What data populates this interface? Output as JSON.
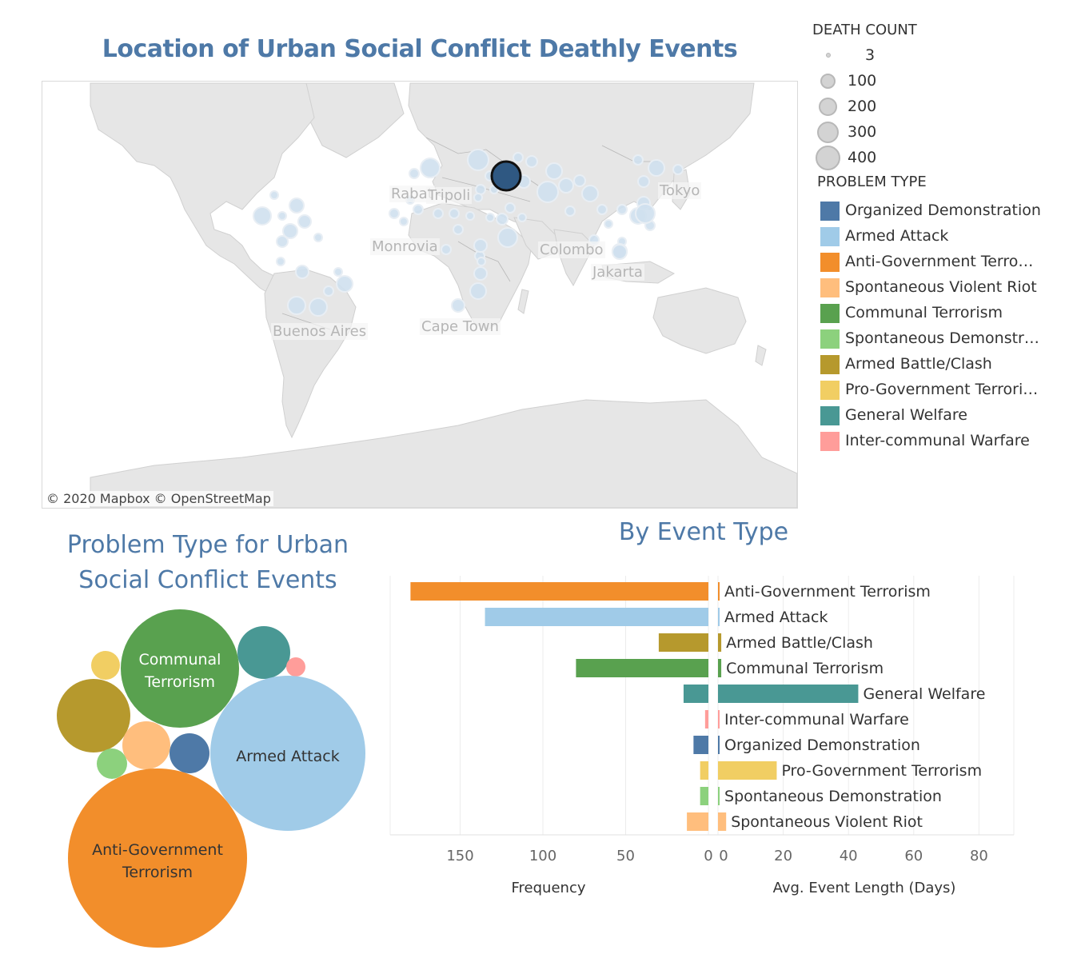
{
  "map": {
    "title": "Location of Urban Social Conflict Deathly Events",
    "attribution": "© 2020 Mapbox  © OpenStreetMap",
    "cities": [
      "Tokyo",
      "Rabat",
      "Tripoli",
      "Monrovia",
      "Colombo",
      "Jakarta",
      "Buenos Aires",
      "Cape Town"
    ]
  },
  "size_legend": {
    "title": "DEATH COUNT",
    "items": [
      "3",
      "100",
      "200",
      "300",
      "400"
    ]
  },
  "problem_legend": {
    "title": "PROBLEM TYPE",
    "items": [
      {
        "label": "Organized Demonstration",
        "color": "#4e79a7"
      },
      {
        "label": "Armed Attack",
        "color": "#a0cbe8"
      },
      {
        "label": "Anti-Government Terro…",
        "color": "#f28e2b"
      },
      {
        "label": "Spontaneous Violent Riot",
        "color": "#ffbe7d"
      },
      {
        "label": "Communal Terrorism",
        "color": "#59a14f"
      },
      {
        "label": "Spontaneous Demonstr…",
        "color": "#8cd17d"
      },
      {
        "label": "Armed Battle/Clash",
        "color": "#b6992d"
      },
      {
        "label": "Pro-Government Terrori…",
        "color": "#f1ce63"
      },
      {
        "label": "General Welfare",
        "color": "#499894"
      },
      {
        "label": "Inter-communal Warfare",
        "color": "#ff9d9a"
      }
    ]
  },
  "bubble": {
    "title_line1": "Problem Type for Urban",
    "title_line2": "Social Conflict Events",
    "labels": {
      "communal_1": "Communal",
      "communal_2": "Terrorism",
      "armed_attack": "Armed Attack",
      "antigov_1": "Anti-Government",
      "antigov_2": "Terrorism"
    }
  },
  "bar_title": "By Event Type",
  "chart_data": {
    "type": "bar",
    "categories": [
      "Anti-Government Terrorism",
      "Armed Attack",
      "Armed Battle/Clash",
      "Communal Terrorism",
      "General Welfare",
      "Inter-communal Warfare",
      "Organized Demonstration",
      "Pro-Government Terrorism",
      "Spontaneous Demonstration",
      "Spontaneous Violent Riot"
    ],
    "colors": [
      "#f28e2b",
      "#a0cbe8",
      "#b6992d",
      "#59a14f",
      "#499894",
      "#ff9d9a",
      "#4e79a7",
      "#f1ce63",
      "#8cd17d",
      "#ffbe7d"
    ],
    "series": [
      {
        "name": "Frequency",
        "values": [
          180,
          135,
          30,
          80,
          15,
          2,
          9,
          5,
          5,
          13
        ]
      },
      {
        "name": "Avg. Event Length (Days)",
        "values": [
          0.3,
          0.5,
          1,
          1,
          43,
          0.3,
          0.3,
          18,
          0.5,
          2.5
        ]
      }
    ],
    "frequency_axis": {
      "label": "Frequency",
      "ticks": [
        "150",
        "100",
        "50",
        "0"
      ],
      "range": [
        0,
        185
      ]
    },
    "length_axis": {
      "label": "Avg. Event Length (Days)",
      "ticks": [
        "0",
        "20",
        "40",
        "60",
        "80"
      ],
      "range": [
        0,
        90
      ]
    }
  }
}
